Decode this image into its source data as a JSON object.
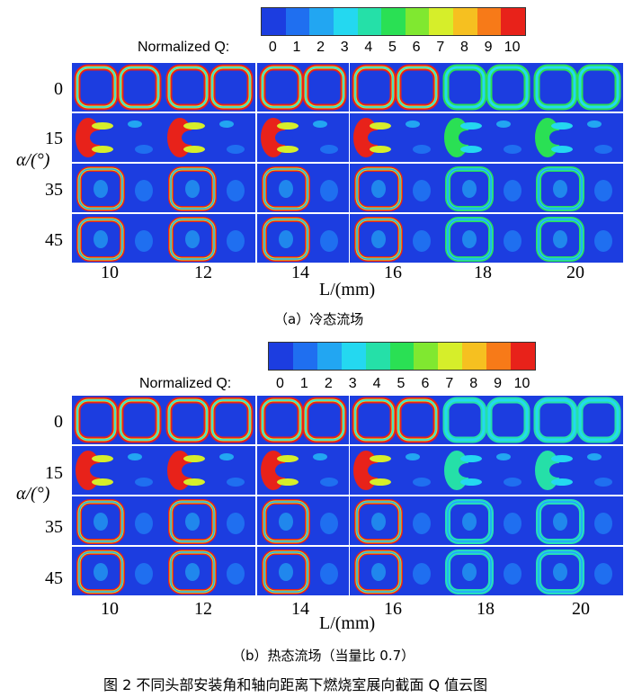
{
  "colorbar": {
    "label": "Normalized Q:",
    "ticks": [
      "0",
      "1",
      "2",
      "3",
      "4",
      "5",
      "6",
      "7",
      "8",
      "9",
      "10"
    ],
    "colors": [
      "#1c3de0",
      "#1f6ff0",
      "#22a6f2",
      "#24d8f0",
      "#25e0a8",
      "#2ae054",
      "#80e830",
      "#d6ee2a",
      "#f6c020",
      "#f77a18",
      "#e8221a"
    ]
  },
  "panel_a": {
    "row_labels": [
      "0",
      "15",
      "35",
      "45"
    ],
    "y_axis": "α/(°)",
    "col_labels": [
      "10",
      "12",
      "14",
      "16",
      "18",
      "20"
    ],
    "x_axis": "L/(mm)",
    "caption": "（a）冷态流场"
  },
  "panel_b": {
    "row_labels": [
      "0",
      "15",
      "35",
      "45"
    ],
    "y_axis": "α/(°)",
    "col_labels": [
      "10",
      "12",
      "14",
      "16",
      "18",
      "20"
    ],
    "x_axis": "L/(mm)",
    "caption": "（b）热态流场（当量比 0.7）"
  },
  "figure_caption": "图 2 不同头部安装角和轴向距离下燃烧室展向截面 Q 值云图"
}
